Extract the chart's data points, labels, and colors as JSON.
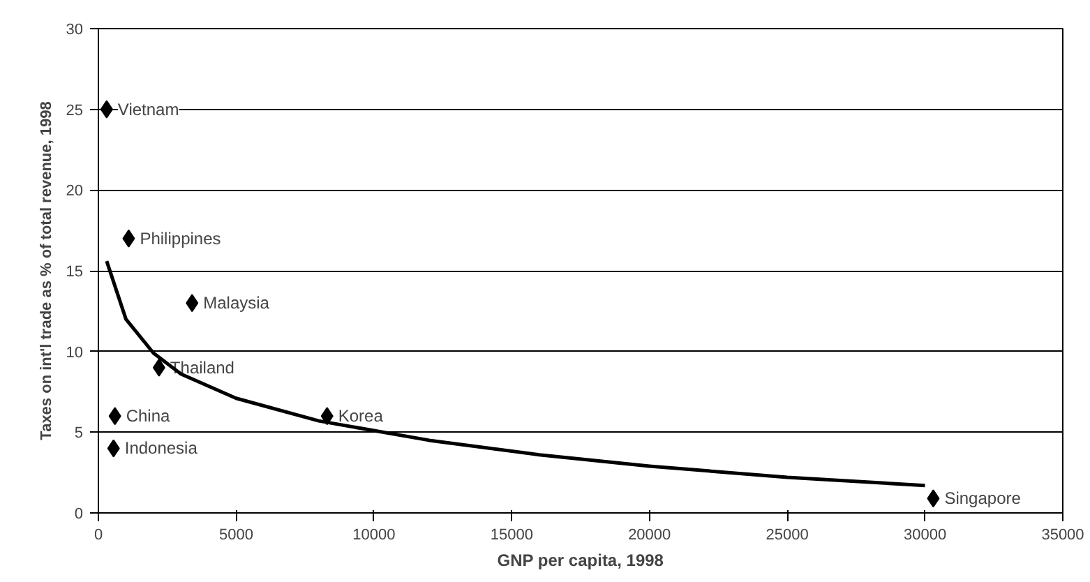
{
  "chart_data": {
    "type": "scatter",
    "xlabel": "GNP per capita, 1998",
    "ylabel": "Taxes on int'l trade as % of total revenue, 1998",
    "xlim": [
      0,
      35000
    ],
    "ylim": [
      0,
      30
    ],
    "xticks": [
      0,
      5000,
      10000,
      15000,
      20000,
      25000,
      30000,
      35000
    ],
    "yticks": [
      0,
      5,
      10,
      15,
      20,
      25,
      30
    ],
    "grid": "y",
    "marker": "diamond",
    "series": [
      {
        "color": "#000000",
        "x": [
          300,
          1100,
          3400,
          2200,
          600,
          550,
          8300,
          30300
        ],
        "values": [
          25,
          17,
          13,
          9,
          6,
          4,
          6,
          0.9
        ]
      },
      {
        "type": "line",
        "color": "#000000",
        "marker": "none",
        "x": [
          300,
          1000,
          2000,
          3000,
          5000,
          8000,
          12000,
          16000,
          20000,
          25000,
          30000
        ],
        "values": [
          15.6,
          12.0,
          9.9,
          8.6,
          7.1,
          5.7,
          4.5,
          3.6,
          2.9,
          2.2,
          1.7
        ]
      }
    ],
    "annotations": [
      {
        "text": "Vietnam",
        "x": 300,
        "y": 25
      },
      {
        "text": "Philippines",
        "x": 1100,
        "y": 17
      },
      {
        "text": "Malaysia",
        "x": 3400,
        "y": 13
      },
      {
        "text": "Thailand",
        "x": 2200,
        "y": 9
      },
      {
        "text": "China",
        "x": 600,
        "y": 6
      },
      {
        "text": "Indonesia",
        "x": 550,
        "y": 4
      },
      {
        "text": "Korea",
        "x": 8300,
        "y": 6
      },
      {
        "text": "Singapore",
        "x": 30300,
        "y": 0.9
      }
    ]
  }
}
